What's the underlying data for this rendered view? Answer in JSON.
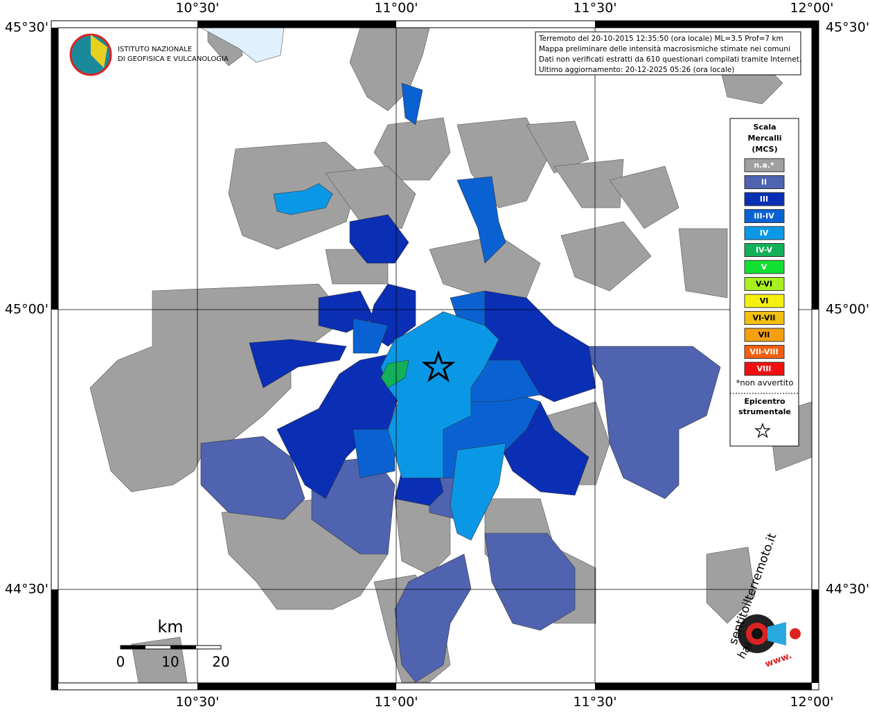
{
  "map": {
    "info": [
      "Terremoto del 20-10-2015 12:35:50 (ora locale) ML=3.5 Prof=7 km",
      "Mappa preliminare delle intensità macrosismiche stimate nei comuni",
      "Dati non verificati estratti da 610 questionari compilati tramite Internet.",
      "Ultimo aggiornamento: 20-12-2025 05:26 (ora locale)"
    ],
    "x_labels": [
      "10°30'",
      "11°00'",
      "11°30'",
      "12°00'"
    ],
    "y_labels": [
      "45°30'",
      "45°00'",
      "44°30'"
    ],
    "institute": [
      "ISTITUTO NAZIONALE",
      "DI GEOFISICA E VULCANOLOGIA"
    ],
    "legend": {
      "title": [
        "Scala",
        "Mercalli",
        "(MCS)"
      ],
      "items": [
        {
          "label": "n.a.*",
          "color": "#a0a0a0"
        },
        {
          "label": "II",
          "color": "#4f63b0"
        },
        {
          "label": "III",
          "color": "#0a2fb5"
        },
        {
          "label": "III-IV",
          "color": "#0a62d2"
        },
        {
          "label": "IV",
          "color": "#0a98e6"
        },
        {
          "label": "IV-V",
          "color": "#12b058"
        },
        {
          "label": "V",
          "color": "#12e030"
        },
        {
          "label": "V-VI",
          "color": "#a8f020"
        },
        {
          "label": "VI",
          "color": "#f4f010"
        },
        {
          "label": "VI-VII",
          "color": "#f4c010"
        },
        {
          "label": "VII",
          "color": "#f4a010"
        },
        {
          "label": "VII-VIII",
          "color": "#f06010"
        },
        {
          "label": "VIII",
          "color": "#f01010"
        }
      ],
      "note": "*non avvertito",
      "epicenter": [
        "Epicentro",
        "strumentale"
      ]
    },
    "scale": {
      "unit": "km",
      "labels": [
        "0",
        "10",
        "20"
      ]
    },
    "brand": {
      "hai": "hai",
      "site": "sentitoilterremoto.it",
      "www": "www."
    }
  }
}
